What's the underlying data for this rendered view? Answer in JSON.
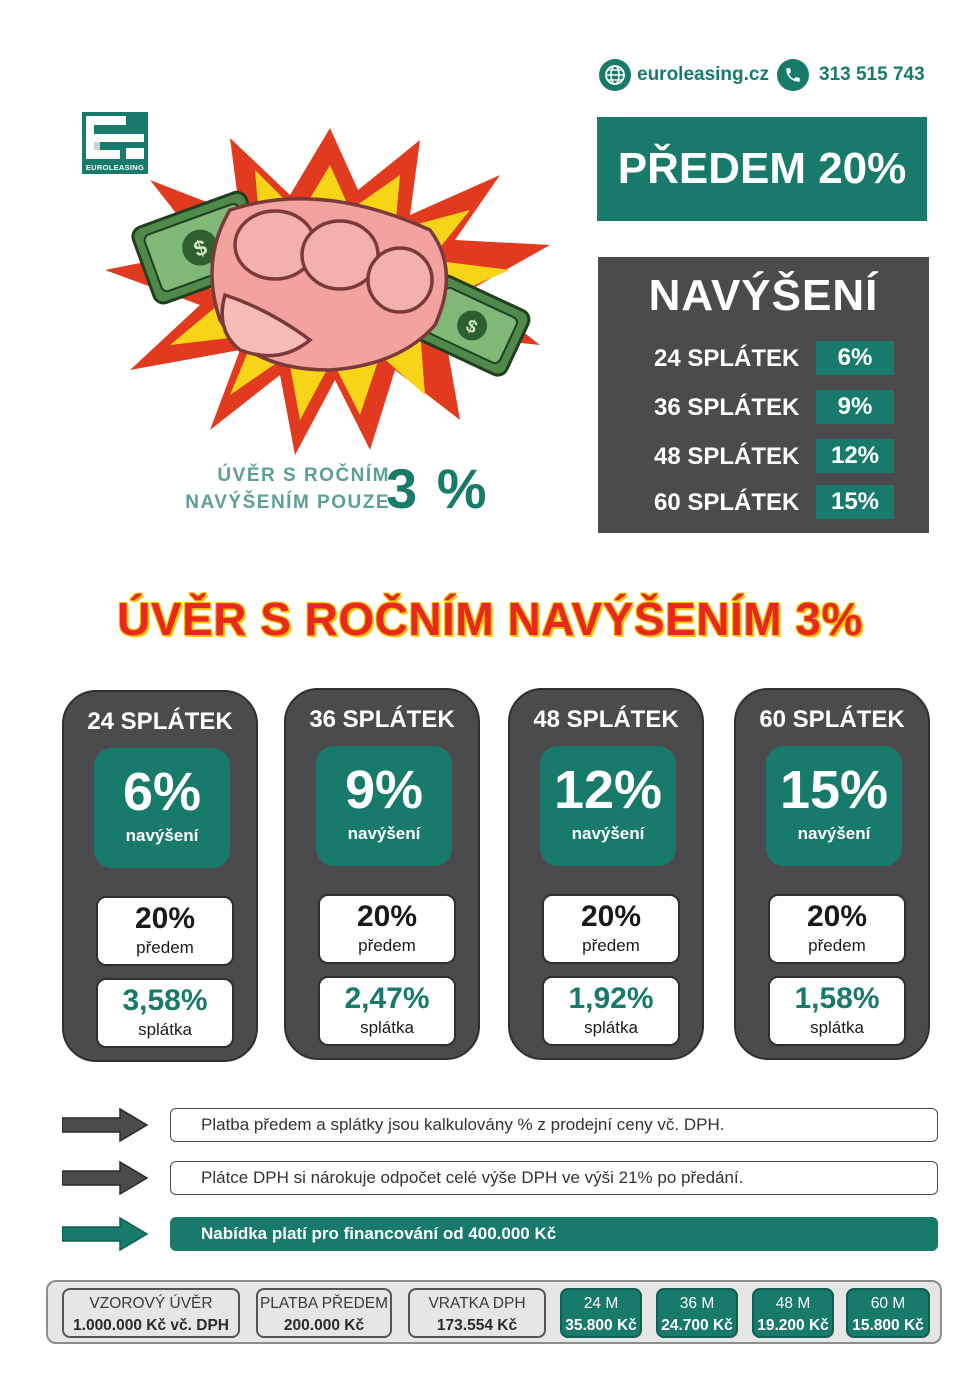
{
  "contact": {
    "web": "euroleasing.cz",
    "phone": "313 515 743",
    "web_icon": "globe-icon",
    "phone_icon": "phone-icon"
  },
  "logo": {
    "text": "EUROLEASING"
  },
  "hero": {
    "caption_line1": "ÚVĚR S ROČNÍM",
    "caption_line2": "NAVÝŠENÍM POUZE",
    "percent": "3 %"
  },
  "predem": {
    "label": "PŘEDEM 20%"
  },
  "navyseni": {
    "title": "NAVÝŠENÍ",
    "rows": [
      {
        "label": "24 SPLÁTEK",
        "value": "6%"
      },
      {
        "label": "36 SPLÁTEK",
        "value": "9%"
      },
      {
        "label": "48 SPLÁTEK",
        "value": "12%"
      },
      {
        "label": "60 SPLÁTEK",
        "value": "15%"
      }
    ]
  },
  "headline": "ÚVĚR S ROČNÍM NAVÝŠENÍM 3%",
  "cards": [
    {
      "title": "24 SPLÁTEK",
      "increase": "6%",
      "increase_label": "navýšení",
      "upfront": "20%",
      "upfront_label": "předem",
      "installment": "3,58%",
      "installment_label": "splátka"
    },
    {
      "title": "36 SPLÁTEK",
      "increase": "9%",
      "increase_label": "navýšení",
      "upfront": "20%",
      "upfront_label": "předem",
      "installment": "2,47%",
      "installment_label": "splátka"
    },
    {
      "title": "48 SPLÁTEK",
      "increase": "12%",
      "increase_label": "navýšení",
      "upfront": "20%",
      "upfront_label": "předem",
      "installment": "1,92%",
      "installment_label": "splátka"
    },
    {
      "title": "60 SPLÁTEK",
      "increase": "15%",
      "increase_label": "navýšení",
      "upfront": "20%",
      "upfront_label": "předem",
      "installment": "1,58%",
      "installment_label": "splátka"
    }
  ],
  "notes": [
    "Platba předem a splátky jsou kalkulovány % z prodejní ceny vč. DPH.",
    "Plátce DPH si nárokuje odpočet celé výše DPH ve výši 21% po předání.",
    "Nabídka platí pro financování od 400.000 Kč"
  ],
  "summary": [
    {
      "label": "VZOROVÝ ÚVĚR",
      "value": "1.000.000 Kč vč. DPH"
    },
    {
      "label": "PLATBA PŘEDEM",
      "value": "200.000 Kč"
    },
    {
      "label": "VRATKA DPH",
      "value": "173.554 Kč"
    },
    {
      "label": "24 M",
      "value": "35.800 Kč"
    },
    {
      "label": "36 M",
      "value": "24.700 Kč"
    },
    {
      "label": "48 M",
      "value": "19.200 Kč"
    },
    {
      "label": "60 M",
      "value": "15.800 Kč"
    }
  ],
  "colors": {
    "brand_green": "#187a6b",
    "dark_gray": "#4b4b4d",
    "headline_red": "#e8281c",
    "headline_outline": "#f5c400"
  }
}
